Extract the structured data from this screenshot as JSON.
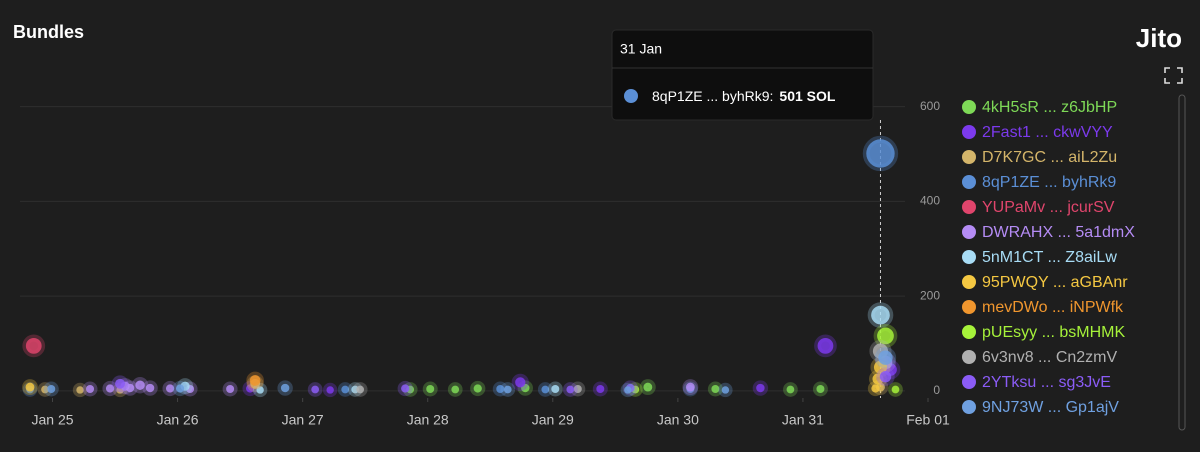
{
  "chart_data": {
    "type": "scatter",
    "title": "Bundles",
    "brand": "Jito",
    "xlim": [
      24.74,
      32
    ],
    "xticks": [
      {
        "value": 25,
        "label": "Jan 25"
      },
      {
        "value": 26,
        "label": "Jan 26"
      },
      {
        "value": 27,
        "label": "Jan 27"
      },
      {
        "value": 28,
        "label": "Jan 28"
      },
      {
        "value": 29,
        "label": "Jan 29"
      },
      {
        "value": 30,
        "label": "Jan 30"
      },
      {
        "value": 31,
        "label": "Jan 31"
      },
      {
        "value": 32,
        "label": "Feb 01"
      }
    ],
    "ylim": [
      -15,
      635
    ],
    "yticks": [
      0,
      200,
      400,
      600
    ],
    "grid": true,
    "legend": "right",
    "tooltip": {
      "title": "31 Jan",
      "label": "8qP1ZE ... byhRk9:",
      "value": "501 SOL",
      "series": 3,
      "point": 0
    },
    "series": [
      {
        "name": "4kH5sR ... z6JbHP",
        "color": "#7ed957",
        "x": [
          27.86,
          28.02,
          28.22,
          28.4,
          28.78,
          29.76,
          30.3,
          30.9,
          31.14
        ],
        "values": [
          3,
          4,
          3,
          5,
          6,
          8,
          4,
          3,
          4
        ]
      },
      {
        "name": "2Fast1 ... ckwVYY",
        "color": "#7c3aed",
        "x": [
          31.18,
          28.74,
          26.58,
          27.22,
          29.38,
          30.66,
          31.7
        ],
        "values": [
          95,
          18,
          5,
          2,
          4,
          6,
          45
        ]
      },
      {
        "name": "D7K7GC ... aiL2Zu",
        "color": "#d4b56a",
        "x": [
          24.94,
          25.22,
          25.54,
          26.62,
          31.62
        ],
        "values": [
          3,
          2,
          2,
          15,
          8
        ]
      },
      {
        "name": "8qP1ZE ... byhRk9",
        "color": "#5b8fd6",
        "x": [
          31.62,
          24.82,
          27.34,
          28.58,
          28.94,
          30.1
        ],
        "values": [
          501,
          3,
          3,
          4,
          3,
          4
        ]
      },
      {
        "name": "YUPaMv ... jcurSV",
        "color": "#e0456c",
        "x": [
          24.85
        ],
        "values": [
          95
        ]
      },
      {
        "name": "DWRAHX ... 5a1dmX",
        "color": "#b58cf5",
        "x": [
          25.3,
          25.46,
          25.62,
          25.78,
          25.94,
          26.1,
          25.58,
          25.7,
          26.42,
          30.1,
          31.66
        ],
        "values": [
          4,
          5,
          6,
          6,
          5,
          4,
          10,
          12,
          4,
          8,
          60
        ]
      },
      {
        "name": "5nM1CT ... Z8aiLw",
        "color": "#a8dcf5",
        "x": [
          31.62,
          26.06,
          27.42,
          26.66,
          29.02
        ],
        "values": [
          160,
          10,
          3,
          2,
          4
        ]
      },
      {
        "name": "95PWQY ... aGBAnr",
        "color": "#f5c842",
        "x": [
          31.62,
          31.6,
          31.58,
          24.82
        ],
        "values": [
          50,
          25,
          5,
          8
        ]
      },
      {
        "name": "mevDWo ... iNPWfk",
        "color": "#f0962e",
        "x": [
          26.62
        ],
        "values": [
          22
        ]
      },
      {
        "name": "pUEsyy ... bsMHMK",
        "color": "#a6f23a",
        "x": [
          31.66,
          29.66,
          31.74
        ],
        "values": [
          116,
          3,
          3
        ]
      },
      {
        "name": "6v3nv8 ... Cn2zmV",
        "color": "#b0b0b0",
        "x": [
          31.62,
          27.46,
          29.2
        ],
        "values": [
          84,
          3,
          4
        ]
      },
      {
        "name": "2YTksu ... sg3JvE",
        "color": "#8b5cf6",
        "x": [
          31.66,
          27.82,
          27.1,
          29.62,
          25.54,
          29.14
        ],
        "values": [
          30,
          5,
          3,
          6,
          15,
          3
        ]
      },
      {
        "name": "9NJ73W ... Gp1ajV",
        "color": "#6fa0e0",
        "x": [
          31.66,
          24.99,
          26.02,
          26.86,
          28.64,
          30.38,
          29.6
        ],
        "values": [
          70,
          4,
          5,
          6,
          3,
          2,
          2
        ]
      }
    ]
  }
}
